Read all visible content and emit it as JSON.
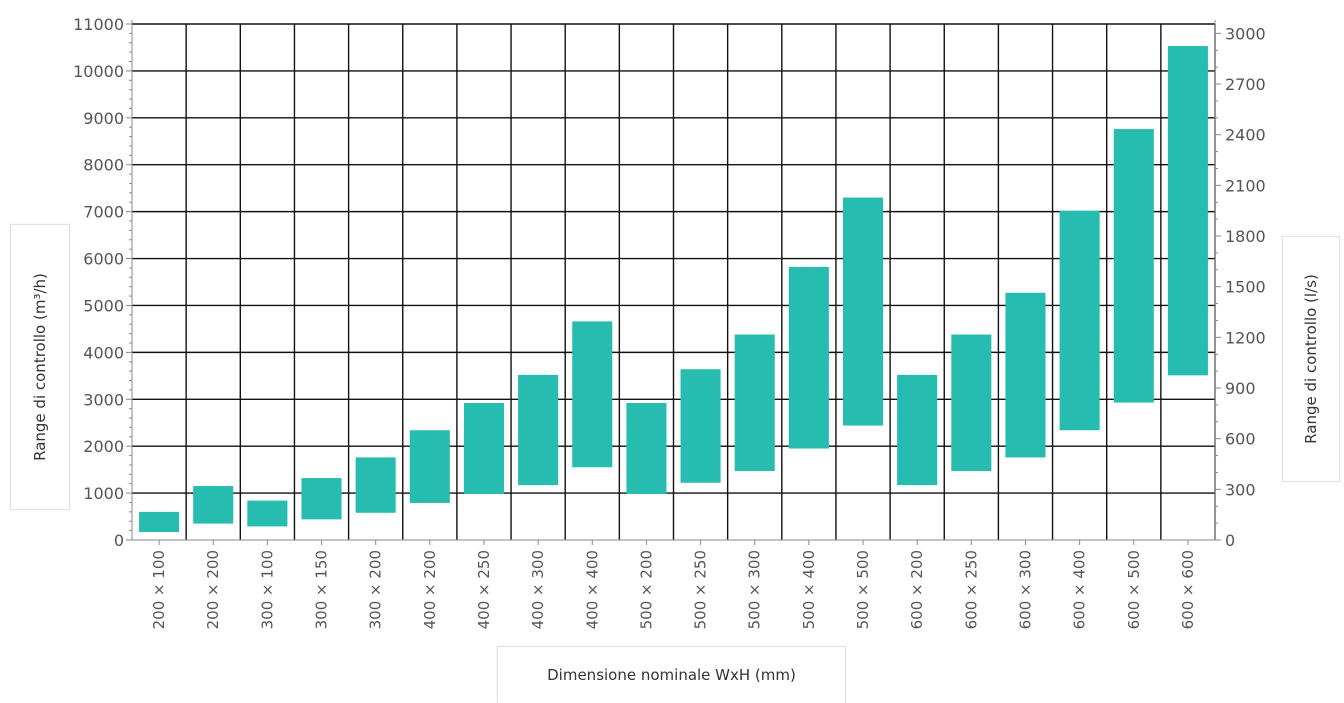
{
  "chart_data": {
    "type": "bar",
    "subtype": "floating-range",
    "categories": [
      "200 × 100",
      "200 × 200",
      "300 × 100",
      "300 × 150",
      "300 × 200",
      "400 × 200",
      "400 × 250",
      "400 × 300",
      "400 × 400",
      "500 × 200",
      "500 × 250",
      "500 × 300",
      "500 × 400",
      "500 × 500",
      "600 × 200",
      "600 × 250",
      "600 × 300",
      "600 × 400",
      "600 × 500",
      "600 × 600"
    ],
    "series": [
      {
        "ranges": [
          [
            170,
            600
          ],
          [
            350,
            1150
          ],
          [
            290,
            840
          ],
          [
            440,
            1320
          ],
          [
            580,
            1760
          ],
          [
            790,
            2340
          ],
          [
            980,
            2920
          ],
          [
            1170,
            3520
          ],
          [
            1550,
            4660
          ],
          [
            980,
            2920
          ],
          [
            1220,
            3640
          ],
          [
            1470,
            4380
          ],
          [
            1950,
            5820
          ],
          [
            2440,
            7300
          ],
          [
            1170,
            3520
          ],
          [
            1470,
            4380
          ],
          [
            1760,
            5270
          ],
          [
            2340,
            7020
          ],
          [
            2930,
            8760
          ],
          [
            3510,
            10530
          ]
        ]
      }
    ],
    "ylim": [
      0,
      11000
    ],
    "y_ticks": [
      0,
      1000,
      2000,
      3000,
      4000,
      5000,
      6000,
      7000,
      8000,
      9000,
      10000,
      11000
    ],
    "y2lim": [
      0,
      3055.6
    ],
    "y2_ticks": [
      0,
      300,
      600,
      900,
      1200,
      1500,
      1800,
      2100,
      2400,
      2700,
      3000
    ],
    "ylabel": "Range di controllo (m³/h)",
    "y2label": "Range di controllo (l/s)",
    "xlabel": "Dimensione nominale WxH (mm)",
    "grid": true,
    "colors": {
      "bar": "#26bcaf",
      "grid": "#111111",
      "axis": "#888888",
      "tick_text": "#555555"
    }
  }
}
